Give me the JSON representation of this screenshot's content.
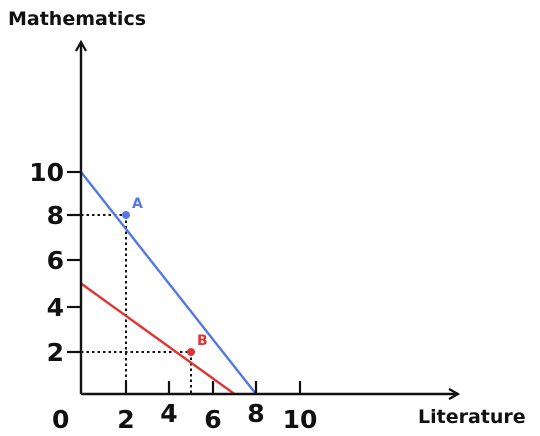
{
  "chart_data": {
    "type": "line",
    "xlabel": "Literature",
    "ylabel": "Mathematics",
    "origin_label": "0",
    "x_ticks": [
      {
        "value": 2,
        "label": "2"
      },
      {
        "value": 4,
        "label": "4"
      },
      {
        "value": 6,
        "label": "6"
      },
      {
        "value": 8,
        "label": "8"
      },
      {
        "value": 10,
        "label": "10"
      }
    ],
    "y_ticks": [
      {
        "value": 2,
        "label": "2"
      },
      {
        "value": 4,
        "label": "4"
      },
      {
        "value": 6,
        "label": "6"
      },
      {
        "value": 8,
        "label": "8"
      },
      {
        "value": 10,
        "label": "10"
      }
    ],
    "series": [
      {
        "color": "#5577e6",
        "points": [
          [
            0,
            10
          ],
          [
            8,
            0
          ]
        ]
      },
      {
        "color": "#e03535",
        "points": [
          [
            0,
            5
          ],
          [
            7,
            0
          ]
        ]
      }
    ],
    "points": [
      {
        "label": "A",
        "x": 2,
        "y": 8,
        "color": "#5577e6"
      },
      {
        "label": "B",
        "x": 5,
        "y": 2,
        "color": "#e03535"
      }
    ]
  }
}
